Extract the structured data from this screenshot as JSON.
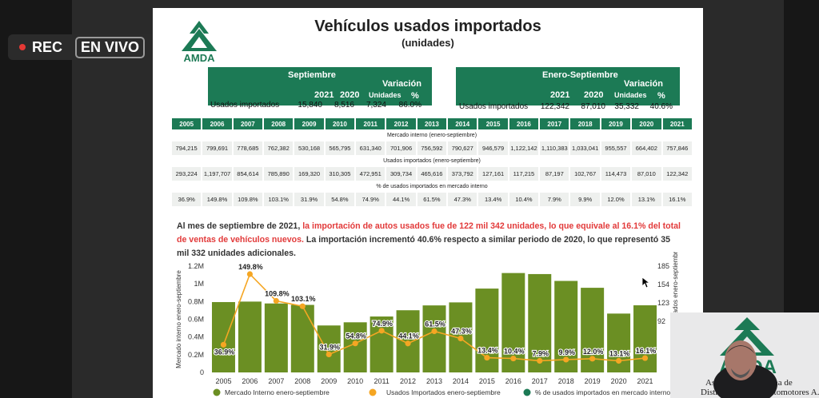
{
  "overlay": {
    "rec_label": "REC",
    "live_label": "EN VIVO"
  },
  "slide": {
    "title": "Vehículos usados importados",
    "subtitle": "(unidades)",
    "brand": "AMDA",
    "brand_color": "#1c7a55",
    "accent_red": "#e23a3a"
  },
  "sept": {
    "header": "Septiembre",
    "variation": "Variación",
    "col_2021": "2021",
    "col_2020": "2020",
    "col_units": "Unidades",
    "col_pct": "%",
    "row_label": "Usados importados",
    "v2021": "15,840",
    "v2020": "8,516",
    "units": "7,324",
    "pct": "86.0%"
  },
  "ytd": {
    "header": "Enero-Septiembre",
    "variation": "Variación",
    "col_2021": "2021",
    "col_2020": "2020",
    "col_units": "Unidades",
    "col_pct": "%",
    "row_label": "Usados importados",
    "v2021": "122,342",
    "v2020": "87,010",
    "units": "35,332",
    "pct": "40.6%"
  },
  "history": {
    "years": [
      "2005",
      "2006",
      "2007",
      "2008",
      "2009",
      "2010",
      "2011",
      "2012",
      "2013",
      "2014",
      "2015",
      "2016",
      "2017",
      "2018",
      "2019",
      "2020",
      "2021"
    ],
    "section_market": "Mercado interno (enero-septiembre)",
    "market": [
      "794,215",
      "799,691",
      "778,685",
      "762,382",
      "530,168",
      "565,795",
      "631,340",
      "701,906",
      "756,592",
      "790,627",
      "946,579",
      "1,122,142",
      "1,110,383",
      "1,033,041",
      "955,557",
      "664,402",
      "757,846"
    ],
    "section_used": "Usados importados (enero-septiembre)",
    "used": [
      "293,224",
      "1,197,707",
      "854,614",
      "785,890",
      "169,320",
      "310,305",
      "472,951",
      "309,734",
      "465,616",
      "373,792",
      "127,161",
      "117,215",
      "87,197",
      "102,767",
      "114,473",
      "87,010",
      "122,342"
    ],
    "section_pct": "% de usados importados en mercado interno",
    "pct": [
      "36.9%",
      "149.8%",
      "109.8%",
      "103.1%",
      "31.9%",
      "54.8%",
      "74.9%",
      "44.1%",
      "61.5%",
      "47.3%",
      "13.4%",
      "10.4%",
      "7.9%",
      "9.9%",
      "12.0%",
      "13.1%",
      "16.1%"
    ]
  },
  "narrative": {
    "p1": "Al mes de septiembre de 2021, ",
    "p2": "la importación de autos usados fue de 122 mil 342 unidades, lo que equivale al 16.1% del total de ventas de vehículos nuevos.",
    "p3": " La importación incrementó 40.6% respecto a similar periodo de 2020, lo que representó 35 mil 332 unidades adicionales."
  },
  "chart_data": {
    "type": "bar",
    "categories": [
      "2005",
      "2006",
      "2007",
      "2008",
      "2009",
      "2010",
      "2011",
      "2012",
      "2013",
      "2014",
      "2015",
      "2016",
      "2017",
      "2018",
      "2019",
      "2020",
      "2021"
    ],
    "series": [
      {
        "name": "Mercado Interno enero-septiembre",
        "type": "bar",
        "axis": "left",
        "color": "#6b8f23",
        "values": [
          794215,
          799691,
          778685,
          762382,
          530168,
          565795,
          631340,
          701906,
          756592,
          790627,
          946579,
          1122142,
          1110383,
          1033041,
          955557,
          664402,
          757846
        ]
      },
      {
        "name": "Usados Importados enero-septiembre",
        "type": "line",
        "axis": "right",
        "color": "#f5a623",
        "values": [
          293224,
          1197707,
          854614,
          785890,
          169320,
          310305,
          472951,
          309734,
          465616,
          373792,
          127161,
          117215,
          87197,
          102767,
          114473,
          87010,
          122342
        ]
      },
      {
        "name": "% de usados importados en mercado interno",
        "type": "label",
        "color": "#222222",
        "values": [
          "36.9%",
          "149.8%",
          "109.8%",
          "103.1%",
          "31.9%",
          "54.8%",
          "74.9%",
          "44.1%",
          "61.5%",
          "47.3%",
          "13.4%",
          "10.4%",
          "7.9%",
          "9.9%",
          "12.0%",
          "13.1%",
          "16.1%"
        ]
      }
    ],
    "y_left": {
      "label": "Mercado interno enero-septiembre",
      "ticks": [
        "0",
        "0.2M",
        "0.4M",
        "0.6M",
        "0.8M",
        "1M",
        "1.2M"
      ],
      "lim": [
        0,
        1200000
      ]
    },
    "y_right": {
      "label": "Usados importados enero-septiembre",
      "ticks": [
        "185",
        "154",
        "123",
        "92"
      ]
    },
    "legend_position": "bottom"
  },
  "pip": {
    "line1": "Asociación Mexicana de",
    "line2": "Distribuidores de Automotores A.C."
  }
}
